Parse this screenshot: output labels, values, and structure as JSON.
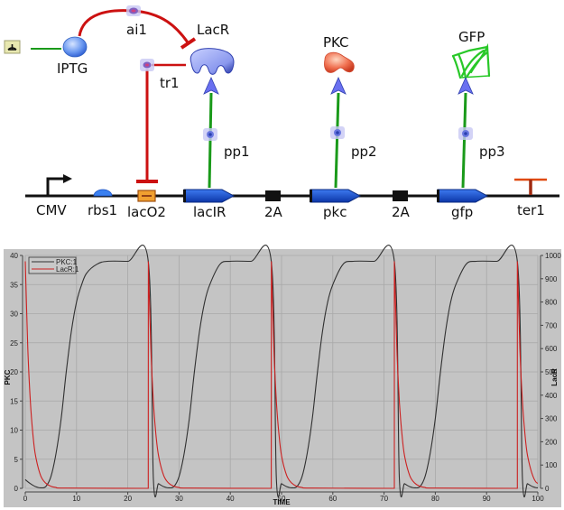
{
  "diagram": {
    "species": {
      "iptg": "IPTG",
      "lacr": "LacR",
      "pkc": "PKC",
      "gfp": "GFP"
    },
    "interactions": {
      "ai1": "ai1",
      "tr1": "tr1",
      "pp1": "pp1",
      "pp2": "pp2",
      "pp3": "pp3"
    },
    "parts": [
      {
        "id": "cmv",
        "label": "CMV",
        "type": "promoter"
      },
      {
        "id": "rbs1",
        "label": "rbs1",
        "type": "rbs"
      },
      {
        "id": "laco2",
        "label": "lacO2",
        "type": "operator"
      },
      {
        "id": "lacir",
        "label": "lacIR",
        "type": "cds"
      },
      {
        "id": "2a-1",
        "label": "2A",
        "type": "linker"
      },
      {
        "id": "pkc",
        "label": "pkc",
        "type": "cds"
      },
      {
        "id": "2a-2",
        "label": "2A",
        "type": "linker"
      },
      {
        "id": "gfp",
        "label": "gfp",
        "type": "cds"
      },
      {
        "id": "ter1",
        "label": "ter1",
        "type": "terminator"
      }
    ],
    "colors": {
      "inhibition": "#cc1111",
      "production": "#1a9a1a",
      "cds": "#1a4fd0",
      "operator": "#f0901a",
      "terminator": "#d04010",
      "lacr_protein": "#8e9cf0",
      "pkc_protein": "#f06040",
      "gfp_protein": "#30d030",
      "iptg": "#5a8ef0"
    }
  },
  "chart_data": {
    "type": "line",
    "title": "",
    "xlabel": "TIME",
    "ylabel": "PKC",
    "ylabel_right": "LacR",
    "xlim": [
      0,
      100
    ],
    "ylim": [
      0,
      40
    ],
    "ylim_right": [
      0,
      1000
    ],
    "x_ticks": [
      "0",
      "10",
      "20",
      "30",
      "40",
      "50",
      "60",
      "70",
      "80",
      "90",
      "100"
    ],
    "y_ticks": [
      "0",
      "5",
      "10",
      "15",
      "20",
      "25",
      "30",
      "35",
      "40"
    ],
    "y_ticks_right": [
      "0",
      "100",
      "200",
      "300",
      "400",
      "500",
      "600",
      "700",
      "800",
      "900",
      "1000"
    ],
    "grid": true,
    "legend_position": "upper-left",
    "background": "#c4c4c4",
    "series": [
      {
        "name": "PKC:1",
        "axis": "left",
        "color": "#303030",
        "x": [
          0,
          1,
          2,
          3,
          4,
          5,
          6,
          7,
          8,
          9,
          10,
          11,
          12,
          14,
          16,
          20,
          24,
          25,
          26,
          27,
          28,
          29,
          30,
          31,
          32,
          33,
          34,
          35,
          36,
          38,
          40,
          44,
          48,
          49,
          50,
          51,
          52,
          53,
          54,
          55,
          56,
          57,
          58,
          59,
          60,
          62,
          64,
          68,
          72,
          73,
          74,
          75,
          76,
          77,
          78,
          79,
          80,
          81,
          82,
          83,
          84,
          86,
          88,
          92,
          96,
          97,
          98,
          99,
          100
        ],
        "values": [
          1.5,
          0.8,
          0.3,
          0.1,
          0.3,
          2,
          6,
          12,
          20,
          27,
          32,
          35,
          37,
          38.5,
          39,
          39,
          39,
          1.5,
          0.8,
          0.3,
          0.1,
          0.3,
          2,
          6,
          12,
          20,
          27,
          32,
          35,
          38.5,
          39,
          39,
          39,
          1.5,
          0.8,
          0.3,
          0.1,
          0.3,
          2,
          6,
          12,
          20,
          27,
          32,
          35,
          38.5,
          39,
          39,
          39,
          1.5,
          0.8,
          0.3,
          0.1,
          0.3,
          2,
          6,
          12,
          20,
          27,
          32,
          35,
          38.5,
          39,
          39,
          39,
          1.5,
          0.8,
          0.3,
          0.1
        ]
      },
      {
        "name": "LacR:1",
        "axis": "right",
        "color": "#cc2020",
        "x": [
          0,
          0.5,
          1,
          1.5,
          2,
          3,
          4,
          5,
          6,
          8,
          24,
          24.01,
          24.5,
          25,
          25.5,
          26,
          27,
          28,
          29,
          30,
          32,
          48,
          48.01,
          48.5,
          49,
          49.5,
          50,
          51,
          52,
          53,
          54,
          56,
          72,
          72.01,
          72.5,
          73,
          73.5,
          74,
          75,
          76,
          77,
          78,
          80,
          96,
          96.01,
          96.5,
          97,
          97.5,
          98,
          99,
          100
        ],
        "values": [
          975,
          600,
          370,
          230,
          140,
          55,
          22,
          9,
          4,
          1,
          0,
          975,
          600,
          370,
          230,
          140,
          55,
          22,
          9,
          4,
          1,
          0,
          975,
          600,
          370,
          230,
          140,
          55,
          22,
          9,
          4,
          1,
          0,
          975,
          600,
          370,
          230,
          140,
          55,
          22,
          9,
          4,
          1,
          0,
          975,
          600,
          370,
          230,
          140,
          55,
          22
        ]
      }
    ]
  }
}
